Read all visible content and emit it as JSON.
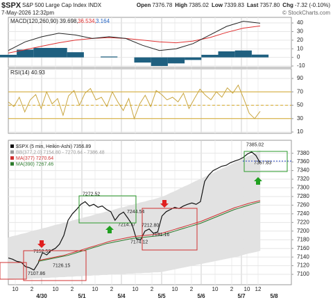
{
  "header": {
    "symbol": "$SPX",
    "name": "S&P 500 Large Cap Index INDX",
    "date": "7-May-2026 12:32pm",
    "quote": [
      {
        "label": "Open",
        "value": "7376.78"
      },
      {
        "label": "High",
        "value": "7385.02"
      },
      {
        "label": "Low",
        "value": "7339.83"
      },
      {
        "label": "Last",
        "value": "7357.80"
      },
      {
        "label": "Chg",
        "value": "-7.32 (-0.10%)"
      }
    ],
    "credit": "© StockCharts.com"
  },
  "chart_data": [
    {
      "type": "line",
      "title": "MACD(120,260,90)",
      "readouts": [
        "39.698,",
        "36.534,",
        "3.164"
      ],
      "ylim": [
        -11.6,
        46.5
      ],
      "yticks": [
        40,
        30,
        20,
        10,
        0,
        -10
      ],
      "grid": true,
      "series": [
        {
          "color": "#1f6080",
          "type": "bar",
          "values": [
            3,
            9,
            11,
            11,
            6,
            0,
            1,
            0,
            -6,
            -10,
            -7,
            -3,
            3,
            7,
            8,
            3.2
          ]
        },
        {
          "color": "#e03030",
          "values": [
            5,
            9,
            13,
            17,
            20,
            22,
            23,
            22,
            20,
            18,
            17,
            19,
            23,
            29,
            34,
            36.5
          ]
        },
        {
          "color": "#222222",
          "values": [
            8,
            18,
            24,
            28,
            26,
            22,
            24,
            22,
            14,
            8,
            10,
            16,
            26,
            36,
            42,
            39.7
          ]
        }
      ]
    },
    {
      "type": "line",
      "title": "RSI(14) 40.93",
      "ylim": [
        8,
        104.5
      ],
      "yticks": [
        90,
        70,
        50,
        30,
        10
      ],
      "grid": true,
      "ref_lines": [
        70,
        50,
        30
      ],
      "ref_color": "#d4a82a",
      "series": [
        {
          "color": "#c9a640",
          "values": [
            55,
            48,
            62,
            40,
            58,
            66,
            45,
            70,
            52,
            60,
            35,
            64,
            72,
            50,
            68,
            75,
            58,
            62,
            48,
            70,
            55,
            42,
            60,
            30,
            52,
            65,
            48,
            72,
            66,
            58,
            62,
            55,
            68,
            45,
            60,
            74,
            65,
            58,
            70,
            62,
            76,
            68,
            80,
            60,
            38,
            30,
            40.93
          ]
        }
      ]
    },
    {
      "type": "line",
      "ylim": [
        7076,
        7410
      ],
      "yticks": [
        7380,
        7360,
        7340,
        7320,
        7300,
        7280,
        7260,
        7240,
        7220,
        7200,
        7180,
        7160,
        7140,
        7120,
        7100
      ],
      "grid": true,
      "band": {
        "name": "BB(377,2.0) 7154.80 - 7270.64 - 7386.48",
        "color": "#e2e2e2",
        "upper": [
          7185,
          7188,
          7190,
          7193,
          7195,
          7198,
          7201,
          7203,
          7206,
          7208,
          7211,
          7214,
          7216,
          7219,
          7221,
          7224,
          7227,
          7229,
          7232,
          7234,
          7237,
          7240,
          7242,
          7245,
          7247,
          7250,
          7253,
          7255,
          7258,
          7260,
          7263,
          7266,
          7268,
          7271,
          7273,
          7276,
          7279,
          7283,
          7288,
          7292,
          7297,
          7302,
          7306,
          7311,
          7316,
          7320,
          7325,
          7330,
          7334,
          7339,
          7344,
          7348,
          7353,
          7358,
          7362,
          7367,
          7372,
          7376,
          7381,
          7386.48
        ],
        "lower": [
          7088,
          7088,
          7089,
          7089,
          7090,
          7090,
          7091,
          7091,
          7092,
          7092,
          7093,
          7093,
          7094,
          7094,
          7095,
          7095,
          7096,
          7096,
          7097,
          7097,
          7098,
          7098,
          7099,
          7099,
          7100,
          7100,
          7101,
          7101,
          7102,
          7102,
          7103,
          7103,
          7104,
          7104,
          7105,
          7105,
          7106,
          7108,
          7110,
          7112,
          7114,
          7116,
          7118,
          7120,
          7122,
          7124,
          7126,
          7128,
          7130,
          7132,
          7134,
          7136,
          7138,
          7140,
          7142,
          7145,
          7148,
          7150,
          7152,
          7154.8
        ]
      },
      "series": [
        {
          "name": "$SPX (5 min, Heikin-Ashi) 7356.89",
          "color": "#111111",
          "values": [
            7138,
            7135,
            7130,
            7128,
            7118,
            7115,
            7110,
            7126,
            7150,
            7145,
            7155,
            7160,
            7170,
            7190,
            7225,
            7240,
            7250,
            7262,
            7268,
            7258,
            7262,
            7255,
            7258,
            7250,
            7245,
            7225,
            7238,
            7244,
            7230,
            7215,
            7182,
            7180,
            7200,
            7205,
            7195,
            7198,
            7235,
            7245,
            7250,
            7255,
            7252,
            7258,
            7262,
            7265,
            7262,
            7268,
            7315,
            7330,
            7340,
            7345,
            7350,
            7352,
            7358,
            7362,
            7365,
            7370,
            7378,
            7383,
            7375,
            7357.8
          ]
        },
        {
          "name": "MA(377) 7270.64",
          "color": "#d03030",
          "values": [
            null,
            null,
            null,
            null,
            null,
            null,
            null,
            7132,
            7134,
            7136,
            7138,
            7140,
            7142,
            7144,
            7147,
            7150,
            7153,
            7156,
            7159,
            7162,
            7165,
            7168,
            7171,
            7174,
            7177,
            7179,
            7181,
            7183,
            7185,
            7187,
            7188,
            7189,
            7190,
            7191,
            7192,
            7193,
            7195,
            7198,
            7201,
            7204,
            7207,
            7210,
            7213,
            7216,
            7219,
            7222,
            7226,
            7230,
            7234,
            7238,
            7242,
            7246,
            7250,
            7254,
            7257,
            7260,
            7263,
            7266,
            7268,
            7270.64
          ]
        },
        {
          "name": "MA(390) 7267.46",
          "color": "#2a7a2a",
          "values": [
            null,
            null,
            null,
            null,
            null,
            null,
            null,
            7130,
            7132,
            7134,
            7136,
            7138,
            7140,
            7142,
            7144,
            7147,
            7150,
            7153,
            7156,
            7159,
            7162,
            7165,
            7168,
            7171,
            7173,
            7175,
            7177,
            7179,
            7181,
            7183,
            7184,
            7185,
            7186,
            7187,
            7188,
            7189,
            7191,
            7194,
            7197,
            7200,
            7203,
            7206,
            7209,
            7212,
            7215,
            7218,
            7222,
            7226,
            7230,
            7234,
            7238,
            7242,
            7246,
            7250,
            7253,
            7256,
            7259,
            7262,
            7265,
            7267.46
          ]
        }
      ],
      "annotations": [
        {
          "value": 7385.02,
          "label": "7385.02"
        },
        {
          "value": 7357.83,
          "label": "7357.83"
        },
        {
          "value": 7152.52,
          "label": "7152.52"
        },
        {
          "value": 7126.15,
          "label": "7126.15"
        },
        {
          "value": 7107.86,
          "label": "7107.86"
        },
        {
          "value": 7272.52,
          "label": "7272.52"
        },
        {
          "value": 7244.54,
          "label": "7244.54"
        },
        {
          "value": 7214.77,
          "label": "7214.77"
        },
        {
          "value": 7212.8,
          "label": "7212.80"
        },
        {
          "value": 7174.12,
          "label": "7174.12"
        },
        {
          "value": 7191.16,
          "label": "7191.16"
        }
      ],
      "time_labels": [
        "10",
        "2",
        "10",
        "2",
        "10",
        "2",
        "10",
        "2",
        "10",
        "2",
        "10",
        "2",
        "10",
        "12"
      ],
      "date_labels": [
        "4/30",
        "5/1",
        "5/4",
        "5/5",
        "5/6",
        "5/7",
        "5/8"
      ]
    }
  ]
}
